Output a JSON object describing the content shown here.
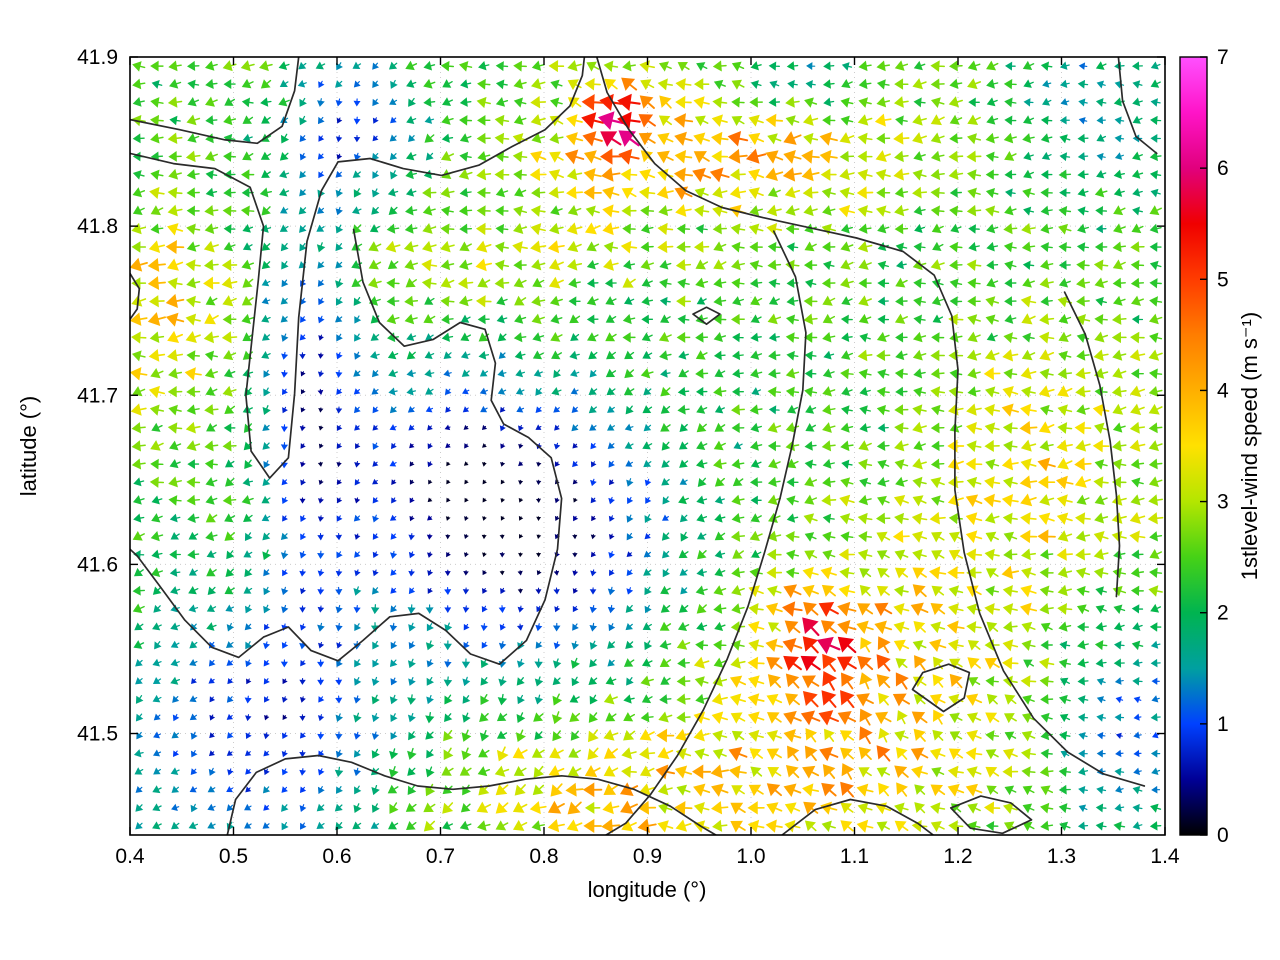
{
  "chart_data": {
    "type": "quiver",
    "description": "Map of 1st-level wind vectors over a longitude/latitude domain; arrows colored by wind speed (0-7 m/s rainbow colorbar) with black topographic/coastline contour lines.",
    "title": "",
    "xlabel": "longitude (°)",
    "ylabel": "latitude (°)",
    "xlim": [
      0.4,
      1.4
    ],
    "ylim": [
      41.44,
      41.9
    ],
    "xticks": [
      "0.4",
      "0.5",
      "0.6",
      "0.7",
      "0.8",
      "0.9",
      "1.0",
      "1.1",
      "1.2",
      "1.3",
      "1.4"
    ],
    "yticks": [
      "41.5",
      "41.6",
      "41.7",
      "41.8",
      "41.9"
    ],
    "grid": "dotted",
    "grid_color": "#cccccc",
    "contour_color": "#2b2b2b",
    "colorbar": {
      "label": "1stlevel-wind speed (m s⁻¹)",
      "min": 0,
      "max": 7,
      "ticks": [
        "0",
        "1",
        "2",
        "3",
        "4",
        "5",
        "6",
        "7"
      ],
      "stops": [
        [
          0.0,
          "#000000"
        ],
        [
          0.5,
          "#000096"
        ],
        [
          1.0,
          "#0041ff"
        ],
        [
          1.5,
          "#00a0a0"
        ],
        [
          2.0,
          "#00b450"
        ],
        [
          2.5,
          "#46d216"
        ],
        [
          3.0,
          "#b4e600"
        ],
        [
          3.5,
          "#ffe100"
        ],
        [
          4.0,
          "#ffaf00"
        ],
        [
          4.5,
          "#ff7d00"
        ],
        [
          5.0,
          "#ff3c00"
        ],
        [
          5.5,
          "#f00000"
        ],
        [
          6.0,
          "#e1007d"
        ],
        [
          6.5,
          "#ff14c8"
        ],
        [
          7.0,
          "#ff50ff"
        ]
      ]
    },
    "field": {
      "seed": 1337,
      "nx": 57,
      "ny": 43,
      "base_speed": 2.35,
      "speed_jitter_mult": 0.35,
      "speed_jitter_add": 0.45,
      "base_dir": 185,
      "dir_jitter": 44,
      "speed_blobs": [
        [
          0.8,
          41.615,
          0.1,
          0.055,
          -2.0
        ],
        [
          0.7,
          41.66,
          0.07,
          0.045,
          -1.2
        ],
        [
          0.575,
          41.7,
          0.035,
          0.09,
          -1.7
        ],
        [
          0.52,
          41.5,
          0.1,
          0.055,
          -1.6
        ],
        [
          0.62,
          41.862,
          0.045,
          0.032,
          -1.4
        ],
        [
          0.97,
          41.845,
          0.13,
          0.03,
          1.7
        ],
        [
          0.865,
          41.862,
          0.026,
          0.022,
          2.2
        ],
        [
          0.43,
          41.75,
          0.045,
          0.045,
          1.3
        ],
        [
          1.1,
          41.52,
          0.11,
          0.065,
          1.7
        ],
        [
          1.065,
          41.555,
          0.03,
          0.022,
          1.6
        ],
        [
          1.28,
          41.66,
          0.07,
          0.06,
          1.1
        ],
        [
          0.86,
          41.46,
          0.12,
          0.035,
          1.2
        ],
        [
          0.74,
          41.78,
          0.1,
          0.025,
          0.7
        ],
        [
          1.05,
          41.885,
          0.05,
          0.02,
          -1.1
        ],
        [
          1.36,
          41.5,
          0.05,
          0.045,
          -1.4
        ],
        [
          1.33,
          41.87,
          0.05,
          0.035,
          -0.9
        ]
      ],
      "dir_blobs": [
        [
          0.8,
          41.6,
          0.13,
          0.08,
          75
        ],
        [
          0.55,
          41.5,
          0.13,
          0.07,
          55
        ],
        [
          1.1,
          41.52,
          0.12,
          0.07,
          -55
        ],
        [
          0.9,
          41.86,
          0.07,
          0.03,
          -35
        ],
        [
          0.575,
          41.7,
          0.04,
          0.09,
          65
        ],
        [
          0.62,
          41.86,
          0.05,
          0.035,
          60
        ]
      ]
    },
    "contours": [
      [
        [
          0.4,
          41.863
        ],
        [
          0.448,
          41.857
        ],
        [
          0.492,
          41.851
        ],
        [
          0.523,
          41.849
        ],
        [
          0.547,
          41.859
        ],
        [
          0.559,
          41.88
        ],
        [
          0.563,
          41.9
        ]
      ],
      [
        [
          0.4,
          41.843
        ],
        [
          0.442,
          41.837
        ],
        [
          0.482,
          41.834
        ],
        [
          0.516,
          41.823
        ],
        [
          0.529,
          41.8
        ],
        [
          0.524,
          41.768
        ],
        [
          0.518,
          41.734
        ],
        [
          0.512,
          41.7
        ],
        [
          0.517,
          41.667
        ],
        [
          0.535,
          41.651
        ],
        [
          0.553,
          41.663
        ],
        [
          0.559,
          41.701
        ],
        [
          0.563,
          41.746
        ],
        [
          0.571,
          41.791
        ],
        [
          0.585,
          41.821
        ],
        [
          0.601,
          41.838
        ],
        [
          0.632,
          41.84
        ],
        [
          0.664,
          41.834
        ],
        [
          0.701,
          41.83
        ],
        [
          0.737,
          41.836
        ],
        [
          0.769,
          41.847
        ],
        [
          0.801,
          41.857
        ],
        [
          0.825,
          41.871
        ],
        [
          0.837,
          41.889
        ],
        [
          0.839,
          41.9
        ]
      ],
      [
        [
          0.851,
          41.9
        ],
        [
          0.861,
          41.879
        ],
        [
          0.882,
          41.857
        ],
        [
          0.907,
          41.837
        ],
        [
          0.937,
          41.821
        ],
        [
          0.972,
          41.811
        ],
        [
          1.012,
          41.805
        ],
        [
          1.057,
          41.799
        ],
        [
          1.102,
          41.793
        ],
        [
          1.147,
          41.785
        ],
        [
          1.177,
          41.771
        ],
        [
          1.194,
          41.747
        ],
        [
          1.2,
          41.715
        ],
        [
          1.197,
          41.679
        ],
        [
          1.197,
          41.644
        ],
        [
          1.206,
          41.607
        ],
        [
          1.221,
          41.571
        ],
        [
          1.244,
          41.537
        ],
        [
          1.273,
          41.509
        ],
        [
          1.306,
          41.489
        ],
        [
          1.341,
          41.476
        ],
        [
          1.38,
          41.469
        ]
      ],
      [
        [
          1.022,
          41.797
        ],
        [
          1.043,
          41.77
        ],
        [
          1.053,
          41.737
        ],
        [
          1.05,
          41.703
        ],
        [
          1.04,
          41.671
        ],
        [
          1.028,
          41.639
        ],
        [
          1.013,
          41.607
        ],
        [
          0.997,
          41.575
        ],
        [
          0.977,
          41.544
        ],
        [
          0.954,
          41.514
        ],
        [
          0.929,
          41.487
        ],
        [
          0.903,
          41.464
        ],
        [
          0.879,
          41.447
        ],
        [
          0.86,
          41.44
        ]
      ],
      [
        [
          0.616,
          41.798
        ],
        [
          0.625,
          41.767
        ],
        [
          0.641,
          41.743
        ],
        [
          0.665,
          41.729
        ],
        [
          0.693,
          41.733
        ],
        [
          0.719,
          41.743
        ],
        [
          0.743,
          41.739
        ],
        [
          0.753,
          41.719
        ],
        [
          0.749,
          41.697
        ],
        [
          0.761,
          41.683
        ],
        [
          0.785,
          41.675
        ],
        [
          0.807,
          41.663
        ],
        [
          0.817,
          41.639
        ],
        [
          0.813,
          41.609
        ],
        [
          0.801,
          41.579
        ],
        [
          0.783,
          41.555
        ],
        [
          0.757,
          41.541
        ],
        [
          0.729,
          41.547
        ],
        [
          0.705,
          41.561
        ],
        [
          0.679,
          41.571
        ],
        [
          0.651,
          41.569
        ],
        [
          0.625,
          41.555
        ],
        [
          0.601,
          41.543
        ],
        [
          0.575,
          41.549
        ],
        [
          0.553,
          41.563
        ],
        [
          0.529,
          41.557
        ],
        [
          0.505,
          41.545
        ],
        [
          0.479,
          41.551
        ],
        [
          0.453,
          41.567
        ],
        [
          0.429,
          41.587
        ],
        [
          0.407,
          41.605
        ],
        [
          0.4,
          41.609
        ]
      ],
      [
        [
          0.494,
          41.44
        ],
        [
          0.502,
          41.461
        ],
        [
          0.522,
          41.477
        ],
        [
          0.55,
          41.485
        ],
        [
          0.582,
          41.487
        ],
        [
          0.614,
          41.483
        ],
        [
          0.646,
          41.475
        ],
        [
          0.678,
          41.469
        ],
        [
          0.712,
          41.467
        ],
        [
          0.747,
          41.469
        ],
        [
          0.782,
          41.473
        ],
        [
          0.817,
          41.475
        ],
        [
          0.852,
          41.473
        ],
        [
          0.887,
          41.467
        ],
        [
          0.922,
          41.457
        ],
        [
          0.952,
          41.445
        ],
        [
          0.966,
          41.44
        ]
      ],
      [
        [
          1.156,
          41.526
        ],
        [
          1.186,
          41.513
        ],
        [
          1.206,
          41.521
        ],
        [
          1.211,
          41.536
        ],
        [
          1.191,
          41.541
        ],
        [
          1.166,
          41.536
        ],
        [
          1.156,
          41.526
        ]
      ],
      [
        [
          1.03,
          41.44
        ],
        [
          1.062,
          41.455
        ],
        [
          1.096,
          41.461
        ],
        [
          1.131,
          41.457
        ],
        [
          1.161,
          41.447
        ],
        [
          1.176,
          41.44
        ]
      ],
      [
        [
          1.193,
          41.456
        ],
        [
          1.222,
          41.463
        ],
        [
          1.251,
          41.459
        ],
        [
          1.271,
          41.449
        ],
        [
          1.243,
          41.441
        ],
        [
          1.212,
          41.444
        ],
        [
          1.193,
          41.456
        ]
      ],
      [
        [
          1.303,
          41.761
        ],
        [
          1.323,
          41.736
        ],
        [
          1.337,
          41.706
        ],
        [
          1.347,
          41.673
        ],
        [
          1.353,
          41.641
        ],
        [
          1.356,
          41.611
        ],
        [
          1.353,
          41.581
        ]
      ],
      [
        [
          1.355,
          41.9
        ],
        [
          1.359,
          41.874
        ],
        [
          1.372,
          41.853
        ],
        [
          1.392,
          41.843
        ]
      ],
      [
        [
          0.4,
          41.772
        ],
        [
          0.409,
          41.763
        ],
        [
          0.407,
          41.751
        ],
        [
          0.4,
          41.745
        ]
      ],
      [
        [
          0.944,
          41.748
        ],
        [
          0.957,
          41.752
        ],
        [
          0.97,
          41.748
        ],
        [
          0.957,
          41.742
        ],
        [
          0.944,
          41.748
        ]
      ]
    ]
  }
}
